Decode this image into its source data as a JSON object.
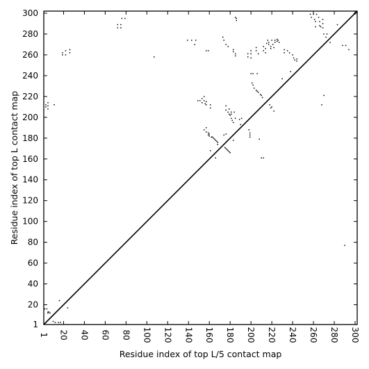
{
  "chart_data": {
    "type": "heatmap",
    "title": "",
    "xlabel": "Residue index of top L/5 contact map",
    "ylabel": "Residue index of top L contact map",
    "xlim": [
      1,
      302
    ],
    "ylim": [
      1,
      302
    ],
    "x_ticks": [
      1,
      20,
      40,
      60,
      80,
      100,
      120,
      140,
      160,
      180,
      200,
      220,
      240,
      260,
      280,
      300
    ],
    "y_ticks": [
      1,
      20,
      40,
      60,
      80,
      100,
      120,
      140,
      160,
      180,
      200,
      220,
      240,
      260,
      280,
      300
    ],
    "grid": false,
    "diagonal_line": true,
    "colors": {
      "mark": "#000000",
      "background": "#ffffff"
    },
    "upper_triangle_contacts": [
      [
        3,
        210
      ],
      [
        3,
        212
      ],
      [
        5,
        208
      ],
      [
        5,
        211
      ],
      [
        5,
        214
      ],
      [
        11,
        212
      ],
      [
        19,
        260
      ],
      [
        19,
        262
      ],
      [
        22,
        260
      ],
      [
        22,
        264
      ],
      [
        26,
        262
      ],
      [
        26,
        265
      ],
      [
        72,
        286
      ],
      [
        72,
        289
      ],
      [
        75,
        286
      ],
      [
        75,
        289
      ],
      [
        76,
        295
      ],
      [
        79,
        295
      ],
      [
        107,
        258
      ],
      [
        139,
        274
      ],
      [
        143,
        274
      ],
      [
        146,
        270
      ],
      [
        147,
        274
      ],
      [
        149,
        216
      ],
      [
        151,
        216
      ],
      [
        153,
        214
      ],
      [
        153,
        218
      ],
      [
        155,
        216
      ],
      [
        155,
        220
      ],
      [
        156,
        213
      ],
      [
        157,
        212
      ],
      [
        157,
        215
      ],
      [
        155,
        188
      ],
      [
        157,
        186
      ],
      [
        157,
        190
      ],
      [
        159,
        183
      ],
      [
        159,
        185
      ],
      [
        160,
        182
      ],
      [
        160,
        184
      ],
      [
        161,
        168
      ],
      [
        161,
        212
      ],
      [
        161,
        209
      ],
      [
        162,
        181
      ],
      [
        163,
        181
      ],
      [
        164,
        180
      ],
      [
        165,
        179
      ],
      [
        166,
        178
      ],
      [
        167,
        177
      ],
      [
        168,
        176
      ],
      [
        168,
        174
      ],
      [
        166,
        161
      ],
      [
        157,
        264
      ],
      [
        159,
        264
      ],
      [
        173,
        277
      ],
      [
        174,
        274
      ],
      [
        176,
        270
      ],
      [
        178,
        268
      ],
      [
        174,
        183
      ],
      [
        176,
        184
      ],
      [
        175,
        171
      ],
      [
        176,
        170
      ],
      [
        177,
        169
      ],
      [
        178,
        168
      ],
      [
        179,
        167
      ],
      [
        180,
        166
      ],
      [
        176,
        211
      ],
      [
        176,
        207
      ],
      [
        178,
        205
      ],
      [
        179,
        203
      ],
      [
        179,
        208
      ],
      [
        180,
        202
      ],
      [
        181,
        199
      ],
      [
        182,
        197
      ],
      [
        181,
        205
      ],
      [
        181,
        203
      ],
      [
        184,
        205
      ],
      [
        183,
        178
      ],
      [
        183,
        195
      ],
      [
        185,
        199
      ],
      [
        189,
        198
      ],
      [
        190,
        193
      ],
      [
        191,
        199
      ],
      [
        183,
        263
      ],
      [
        183,
        265
      ],
      [
        185,
        261
      ],
      [
        185,
        259
      ],
      [
        186,
        295
      ],
      [
        186,
        293
      ],
      [
        185,
        296
      ],
      [
        197,
        258
      ],
      [
        197,
        261
      ],
      [
        198,
        188
      ],
      [
        199,
        185
      ],
      [
        199,
        183
      ],
      [
        199,
        181
      ],
      [
        200,
        257
      ],
      [
        200,
        261
      ],
      [
        200,
        264
      ],
      [
        200,
        242
      ],
      [
        202,
        242
      ],
      [
        206,
        242
      ],
      [
        201,
        233
      ],
      [
        202,
        231
      ],
      [
        203,
        228
      ],
      [
        205,
        226
      ],
      [
        206,
        225
      ],
      [
        207,
        224
      ],
      [
        209,
        222
      ],
      [
        210,
        221
      ],
      [
        211,
        219
      ],
      [
        205,
        264
      ],
      [
        205,
        267
      ],
      [
        207,
        261
      ],
      [
        208,
        179
      ],
      [
        210,
        161
      ],
      [
        212,
        161
      ],
      [
        212,
        268
      ],
      [
        212,
        264
      ],
      [
        214,
        266
      ],
      [
        214,
        262
      ],
      [
        215,
        271
      ],
      [
        216,
        274
      ],
      [
        217,
        272
      ],
      [
        217,
        270
      ],
      [
        219,
        266
      ],
      [
        219,
        268
      ],
      [
        218,
        212
      ],
      [
        219,
        209
      ],
      [
        220,
        210
      ],
      [
        222,
        206
      ],
      [
        220,
        274
      ],
      [
        221,
        270
      ],
      [
        222,
        267
      ],
      [
        223,
        272
      ],
      [
        223,
        274
      ],
      [
        225,
        273
      ],
      [
        225,
        275
      ],
      [
        226,
        274
      ],
      [
        227,
        272
      ],
      [
        230,
        237
      ],
      [
        232,
        262
      ],
      [
        232,
        265
      ],
      [
        235,
        264
      ],
      [
        237,
        262
      ],
      [
        238,
        244
      ],
      [
        240,
        260
      ],
      [
        241,
        257
      ],
      [
        242,
        255
      ],
      [
        244,
        254
      ],
      [
        244,
        256
      ],
      [
        257,
        299
      ],
      [
        258,
        296
      ],
      [
        260,
        299
      ],
      [
        261,
        294
      ],
      [
        262,
        292
      ],
      [
        262,
        287
      ],
      [
        263,
        299
      ],
      [
        265,
        296
      ],
      [
        266,
        292
      ],
      [
        266,
        288
      ],
      [
        267,
        287
      ],
      [
        268,
        212
      ],
      [
        269,
        294
      ],
      [
        269,
        290
      ],
      [
        269,
        286
      ],
      [
        270,
        221
      ],
      [
        270,
        280
      ],
      [
        272,
        277
      ],
      [
        273,
        280
      ],
      [
        276,
        272
      ],
      [
        283,
        289
      ],
      [
        288,
        269
      ],
      [
        290,
        77
      ],
      [
        291,
        269
      ],
      [
        294,
        265
      ]
    ],
    "lower_triangle_contacts": [
      [
        2,
        16
      ],
      [
        4,
        16
      ],
      [
        5,
        13
      ],
      [
        5,
        12
      ],
      [
        6,
        13
      ],
      [
        7,
        12
      ],
      [
        10,
        4
      ],
      [
        12,
        3
      ],
      [
        15,
        3
      ],
      [
        16,
        24
      ],
      [
        17,
        3
      ],
      [
        24,
        17
      ]
    ]
  }
}
